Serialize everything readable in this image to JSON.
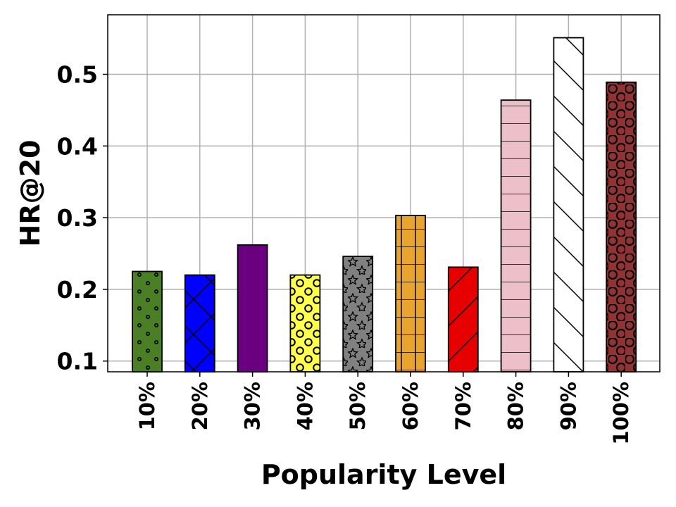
{
  "chart_data": {
    "type": "bar",
    "title": "",
    "xlabel": "Popularity Level",
    "ylabel": "HR@20",
    "categories": [
      "10%",
      "20%",
      "30%",
      "40%",
      "50%",
      "60%",
      "70%",
      "80%",
      "90%",
      "100%"
    ],
    "values": [
      0.225,
      0.22,
      0.262,
      0.22,
      0.246,
      0.303,
      0.231,
      0.464,
      0.551,
      0.489
    ],
    "ylim": [
      0.085,
      0.583
    ],
    "yticks": [
      0.1,
      0.2,
      0.3,
      0.4,
      0.5
    ],
    "ytick_labels": [
      "0.1",
      "0.2",
      "0.3",
      "0.4",
      "0.5"
    ],
    "grid": true,
    "bar_styles": [
      {
        "color": "#4a7f26",
        "hatch": "small-dots"
      },
      {
        "color": "#0000ff",
        "hatch": "cross-diagonal"
      },
      {
        "color": "#6a0080",
        "hatch": "none"
      },
      {
        "color": "#ffff4d",
        "hatch": "circles"
      },
      {
        "color": "#808080",
        "hatch": "stars"
      },
      {
        "color": "#e8a42c",
        "hatch": "grid"
      },
      {
        "color": "#e60000",
        "hatch": "forward-diagonal"
      },
      {
        "color": "#ecbfc9",
        "hatch": "horizontal"
      },
      {
        "color": "#ffffff",
        "hatch": "back-diagonal"
      },
      {
        "color": "#913333",
        "hatch": "large-circles"
      }
    ]
  }
}
